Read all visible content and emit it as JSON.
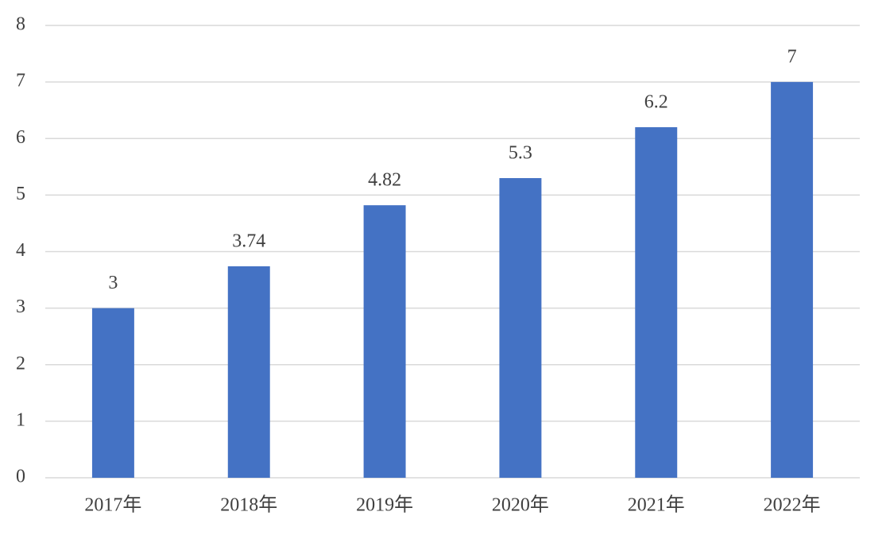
{
  "chart_data": {
    "type": "bar",
    "categories": [
      "2017年",
      "2018年",
      "2019年",
      "2020年",
      "2021年",
      "2022年"
    ],
    "values": [
      3,
      3.74,
      4.82,
      5.3,
      6.2,
      7
    ],
    "color": "#4472c4",
    "ylim": [
      0,
      8
    ],
    "yticks": [
      0,
      1,
      2,
      3,
      4,
      5,
      6,
      7,
      8
    ],
    "grid": true
  }
}
